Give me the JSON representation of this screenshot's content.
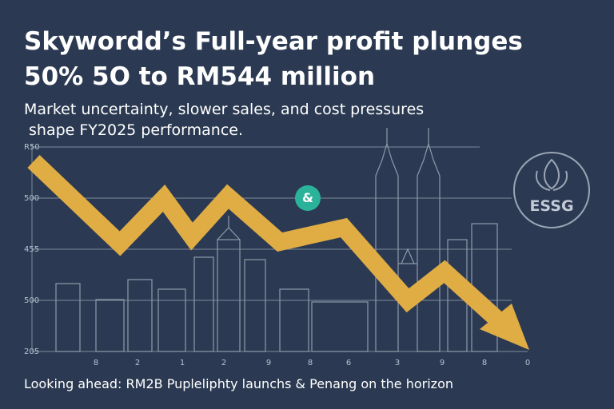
{
  "header": {
    "title_lines": [
      "Skywordd’s Full-year profit plunges",
      "50% 5O to RM544 million"
    ],
    "subtitle_lines": [
      "Market uncertainty, slower sales, and cost pressures",
      "shape FY2025 performance."
    ]
  },
  "axis": {
    "left_labels": [
      "R50",
      "500",
      "455",
      "500",
      "205"
    ],
    "bottom_labels": [
      "8",
      "2",
      "1",
      "2",
      "9",
      "8",
      "6",
      "3",
      "9",
      "8",
      "0"
    ]
  },
  "badge": {
    "label": "ESSG"
  },
  "footer": {
    "text": "Looking ahead: RM2B Pupleliphty launchs & Penang on the horizon"
  }
}
